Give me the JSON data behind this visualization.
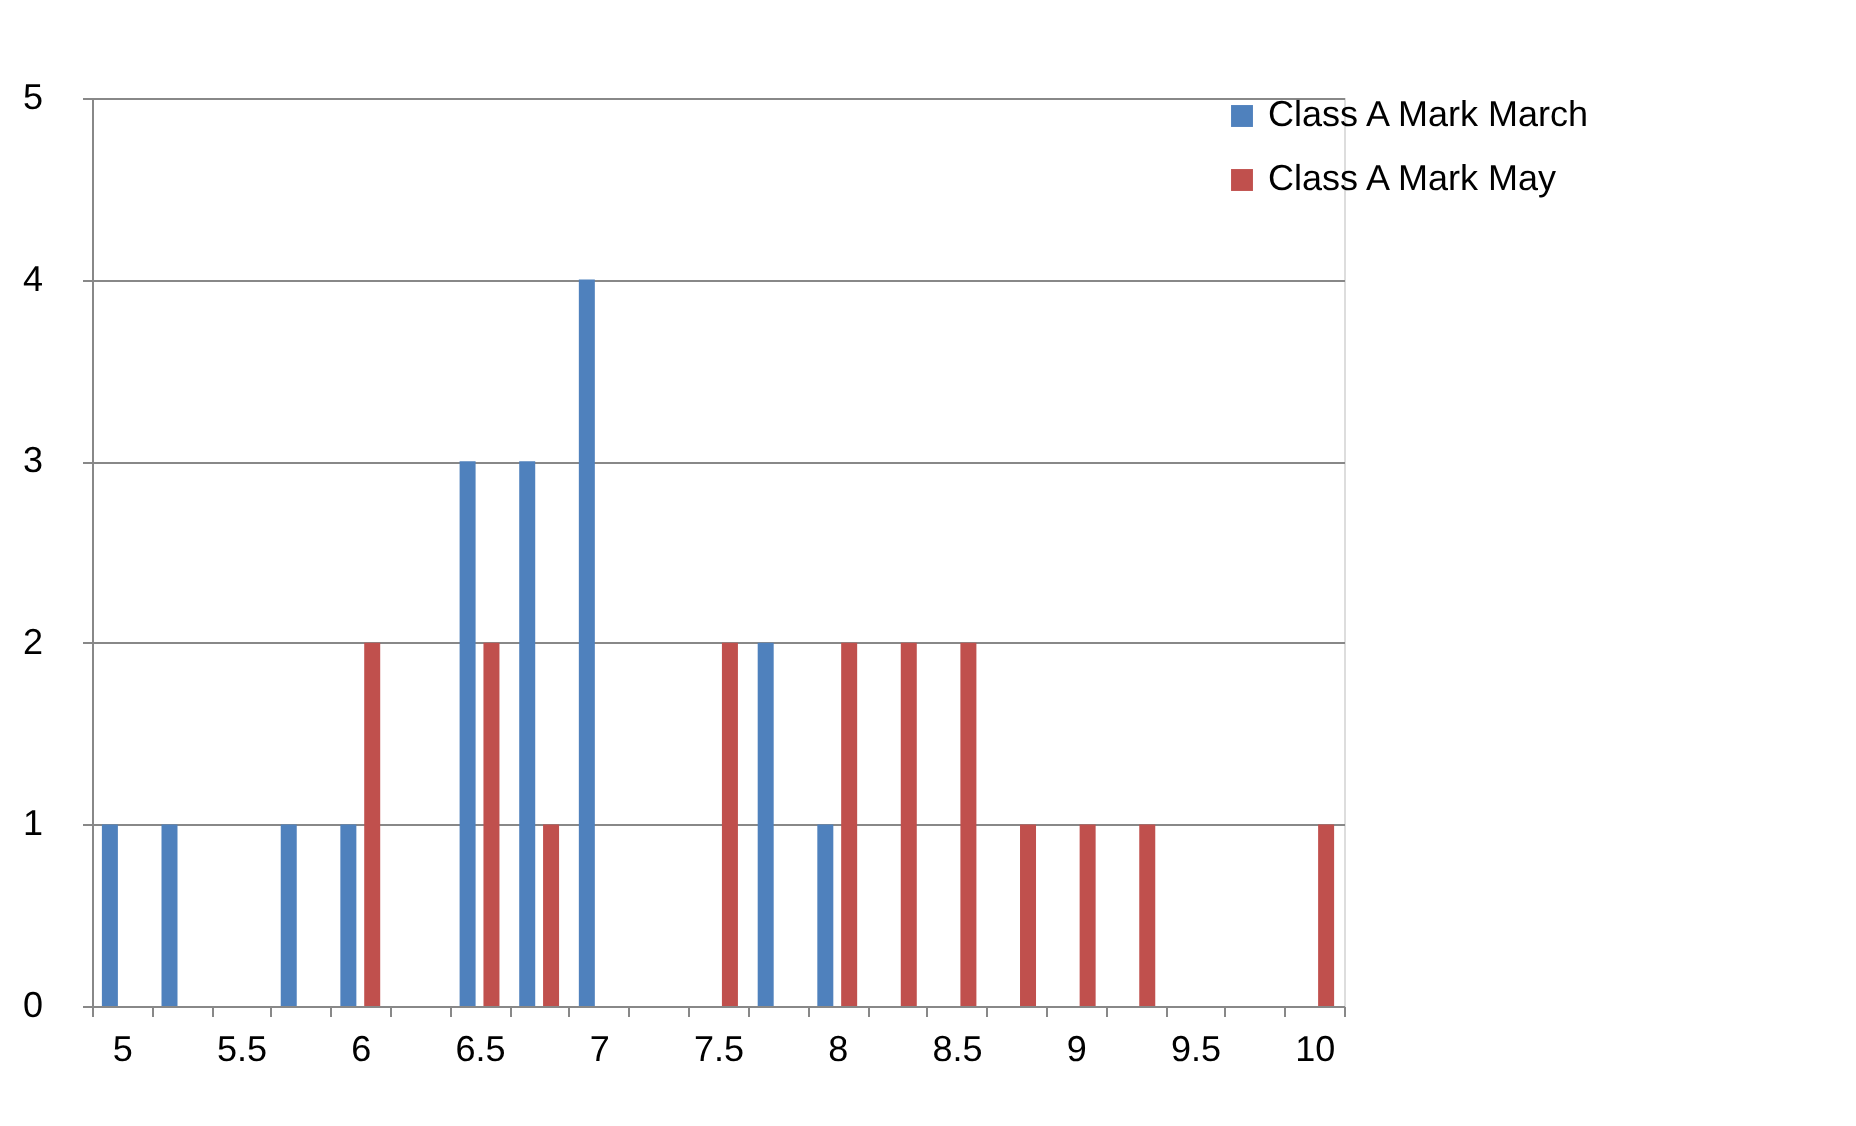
{
  "chart_data": {
    "type": "bar",
    "categories": [
      "5",
      null,
      "5.5",
      null,
      "6",
      null,
      "6.5",
      null,
      "7",
      null,
      "7.5",
      null,
      "8",
      null,
      "8.5",
      null,
      "9",
      null,
      "9.5",
      null,
      "10"
    ],
    "series": [
      {
        "name": "Class A Mark March",
        "color": "#4f81bd",
        "values": [
          1,
          1,
          0,
          1,
          1,
          0,
          3,
          3,
          4,
          0,
          0,
          2,
          1,
          0,
          0,
          0,
          0,
          0,
          0,
          0,
          0
        ]
      },
      {
        "name": "Class A Mark May",
        "color": "#c0504d",
        "values": [
          0,
          0,
          0,
          0,
          2,
          0,
          2,
          1,
          0,
          0,
          2,
          0,
          2,
          2,
          2,
          1,
          1,
          1,
          0,
          0,
          1
        ]
      }
    ],
    "ylim": [
      0,
      5
    ],
    "yticks": [
      0,
      1,
      2,
      3,
      4,
      5
    ],
    "grid": "y",
    "legend": "top right"
  }
}
